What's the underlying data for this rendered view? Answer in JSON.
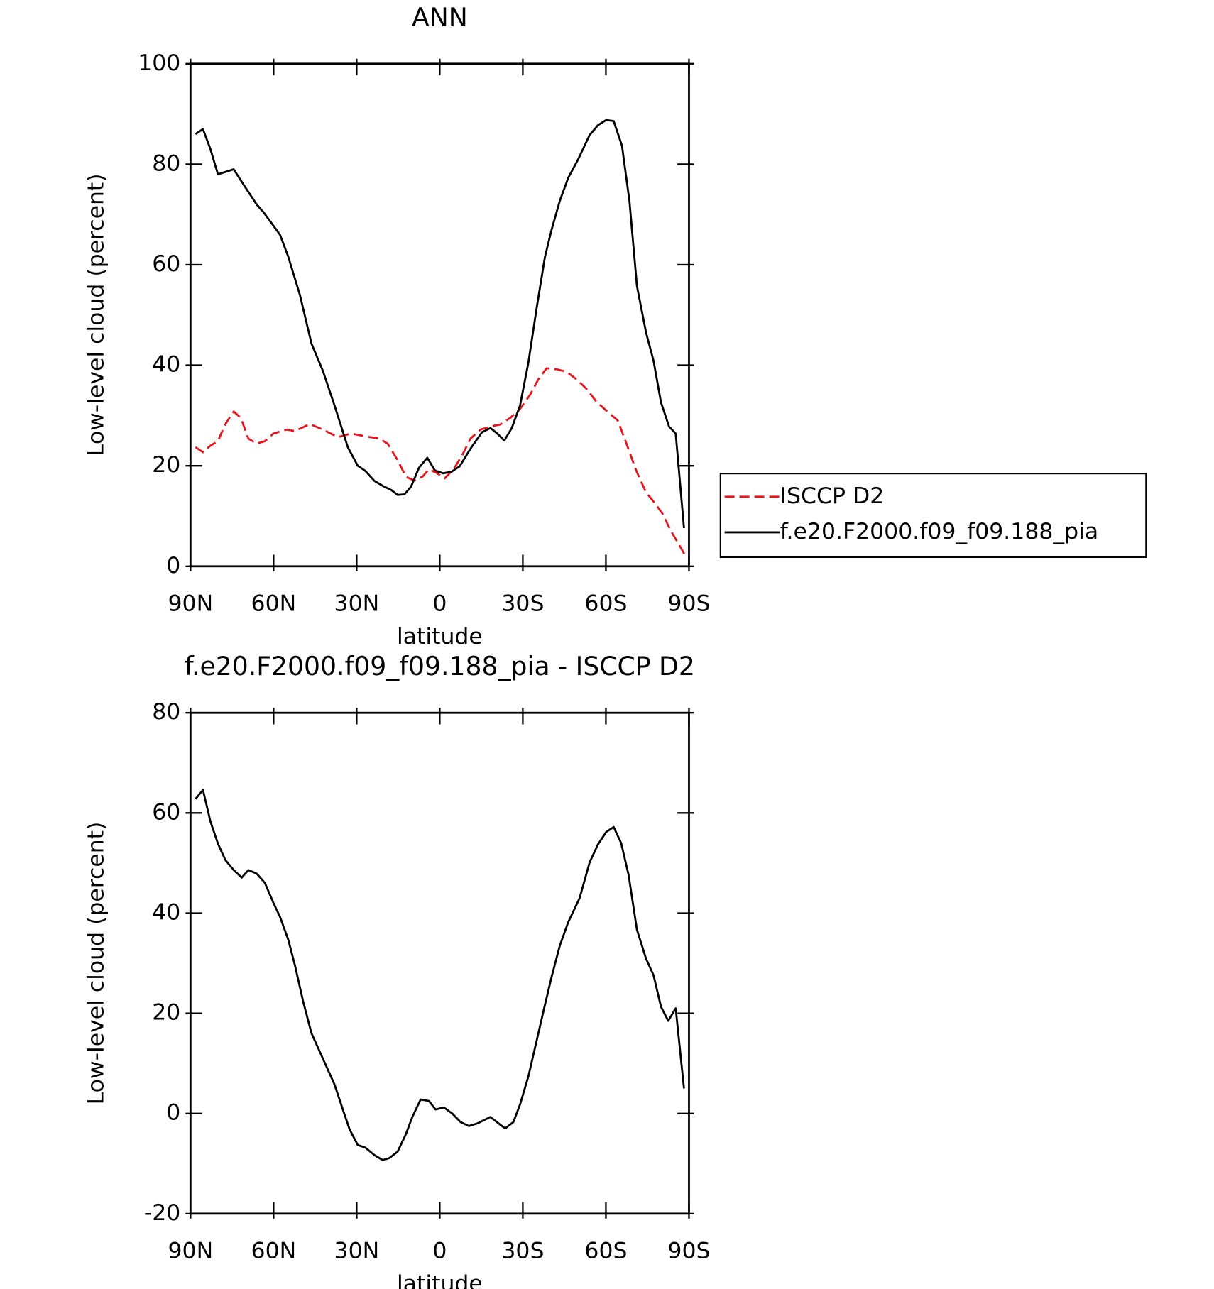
{
  "chart_data": [
    {
      "type": "line",
      "title": "ANN",
      "xlabel": "latitude",
      "ylabel": "Low-level cloud (percent)",
      "xlim": [
        90,
        -90
      ],
      "xticks": [
        {
          "value": 90,
          "label": "90N"
        },
        {
          "value": 60,
          "label": "60N"
        },
        {
          "value": 30,
          "label": "30N"
        },
        0,
        {
          "value": -30,
          "label": "30S"
        },
        {
          "value": -60,
          "label": "60S"
        },
        {
          "value": -90,
          "label": "90S"
        }
      ],
      "ylim": [
        0,
        100
      ],
      "yticks": [
        0,
        20,
        40,
        60,
        80,
        100
      ],
      "legend": "right",
      "series": [
        {
          "name": "ISCCP D2",
          "color": "#e8141c",
          "dash": true,
          "x": [
            88.2,
            85.5,
            82.8,
            80.1,
            77.4,
            74.4,
            71.8,
            69.1,
            66.1,
            63.1,
            60.1,
            55.3,
            52.3,
            46.9,
            42.2,
            36.8,
            32,
            27.2,
            21.8,
            18.8,
            15.2,
            12.2,
            9.3,
            6.3,
            3.9,
            1.2,
            -1.8,
            -5.1,
            -8.1,
            -11.1,
            -14.7,
            -18.3,
            -21.8,
            -25.4,
            -29,
            -32.6,
            -35.6,
            -38.6,
            -42.2,
            -45.8,
            -49.4,
            -53,
            -56.5,
            -60.1,
            -64.3,
            -67.9,
            -70.9,
            -74.5,
            -77.5,
            -80.4,
            -83.4,
            -86.4,
            -88.8
          ],
          "values": [
            23.7,
            22.7,
            24,
            24.9,
            28.3,
            30.8,
            29.5,
            25.4,
            24.4,
            24.9,
            26.4,
            27.2,
            26.9,
            28.3,
            27.2,
            25.7,
            26.4,
            25.9,
            25.4,
            24.4,
            21.1,
            17.8,
            17.1,
            17.8,
            19.3,
            18.6,
            17.5,
            19.4,
            22.1,
            25.4,
            27.2,
            27.8,
            28.2,
            29.5,
            31.3,
            34.1,
            37.2,
            39.4,
            39.2,
            38.7,
            37.2,
            35.3,
            32.8,
            31,
            29,
            23.7,
            19.1,
            14.7,
            12.7,
            10.5,
            7.1,
            4.3,
            2
          ]
        },
        {
          "name": "f.e20.F2000.f09_f09.188_pia",
          "color": "#000000",
          "dash": false,
          "x": [
            88.2,
            85.5,
            82.8,
            80.1,
            74.4,
            70.9,
            66.1,
            63.7,
            57.7,
            54.7,
            50.5,
            46.3,
            42.2,
            38,
            33.2,
            29.6,
            26.9,
            23.6,
            20.6,
            17.6,
            15.2,
            12.8,
            10.4,
            7.5,
            4.5,
            1.8,
            -1.2,
            -4.2,
            -7.2,
            -11.1,
            -15.3,
            -18.3,
            -20.6,
            -23.3,
            -26,
            -29,
            -32,
            -35,
            -38,
            -40.4,
            -43.4,
            -46.4,
            -50,
            -54.1,
            -57.2,
            -60.1,
            -62.8,
            -65.8,
            -68.5,
            -71.2,
            -74.5,
            -77.2,
            -79.9,
            -82.8,
            -85.2,
            -88.2
          ],
          "values": [
            86,
            87,
            83,
            78,
            79,
            76,
            72,
            70.5,
            66,
            61.6,
            54,
            44.3,
            38.9,
            32,
            23.7,
            20,
            19,
            17,
            16,
            15.2,
            14.2,
            14.3,
            15.8,
            19.6,
            21.6,
            19.1,
            18.5,
            18.8,
            19.9,
            23.4,
            26.7,
            27.5,
            26.5,
            25,
            27.5,
            32,
            40.5,
            51.4,
            61.6,
            67,
            72.8,
            77.3,
            81,
            85.8,
            87.8,
            88.8,
            88.6,
            83.7,
            72.7,
            55.8,
            46.5,
            40.9,
            32.6,
            27.8,
            26.4,
            7.6
          ]
        }
      ]
    },
    {
      "type": "line",
      "title": "f.e20.F2000.f09_f09.188_pia - ISCCP D2",
      "xlabel": "latitude",
      "ylabel": "Low-level cloud (percent)",
      "xlim": [
        90,
        -90
      ],
      "xticks": [
        {
          "value": 90,
          "label": "90N"
        },
        {
          "value": 60,
          "label": "60N"
        },
        {
          "value": 30,
          "label": "30N"
        },
        0,
        {
          "value": -30,
          "label": "30S"
        },
        {
          "value": -60,
          "label": "60S"
        },
        {
          "value": -90,
          "label": "90S"
        }
      ],
      "ylim": [
        -20,
        80
      ],
      "yticks": [
        -20,
        0,
        20,
        40,
        60,
        80
      ],
      "series": [
        {
          "color": "#000000",
          "dash": false,
          "x": [
            88.2,
            85.5,
            82.8,
            80.1,
            77.4,
            74.4,
            71.5,
            69.1,
            66.1,
            63.1,
            60.1,
            57.7,
            54.7,
            52.3,
            49.3,
            46.3,
            42.8,
            38,
            35,
            32.6,
            29.6,
            26.9,
            23.6,
            20.6,
            18.2,
            15.2,
            12.2,
            9.9,
            6.9,
            3.9,
            1.5,
            -1.5,
            -4.5,
            -7.5,
            -10.5,
            -13.5,
            -18.3,
            -23.6,
            -26.6,
            -29,
            -32,
            -37.4,
            -40.4,
            -43.4,
            -46.4,
            -50.5,
            -54.1,
            -57.1,
            -60.1,
            -62.8,
            -65.5,
            -68.2,
            -71.2,
            -74.5,
            -77.2,
            -79.9,
            -82.5,
            -85.2,
            -88.2
          ],
          "values": [
            62.8,
            64.6,
            58.3,
            53.9,
            50.6,
            48.6,
            47.1,
            48.6,
            47.9,
            46,
            42.1,
            39.3,
            34.7,
            29.6,
            22.3,
            16,
            11.7,
            5.8,
            0.8,
            -3.1,
            -6.3,
            -6.8,
            -8.3,
            -9.3,
            -8.9,
            -7.6,
            -4.1,
            -0.7,
            2.8,
            2.5,
            0.8,
            1.2,
            0,
            -1.7,
            -2.5,
            -2,
            -0.7,
            -3,
            -1.7,
            1.8,
            7.4,
            20.3,
            27.3,
            33.6,
            38.2,
            43,
            50.1,
            53.7,
            56.2,
            57.2,
            54,
            47.6,
            36.7,
            30.9,
            27.6,
            21.3,
            18.5,
            21,
            5
          ]
        }
      ]
    }
  ]
}
